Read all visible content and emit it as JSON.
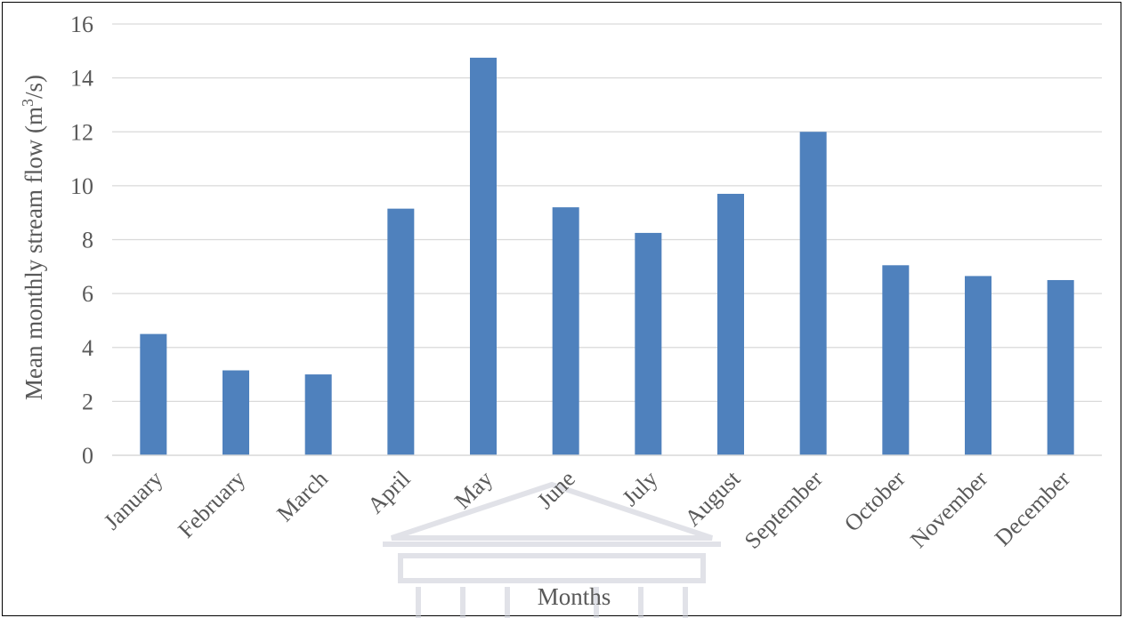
{
  "chart_data": {
    "type": "bar",
    "categories": [
      "January",
      "February",
      "March",
      "April",
      "May",
      "June",
      "July",
      "August",
      "September",
      "October",
      "November",
      "December"
    ],
    "values": [
      4.5,
      3.15,
      3.0,
      9.15,
      14.75,
      9.2,
      8.25,
      9.7,
      12.0,
      7.05,
      6.65,
      6.5
    ],
    "xlabel": "Months",
    "ylabel_prefix": "Mean monthly  stream flow (m",
    "ylabel_sup": "3",
    "ylabel_suffix": "/s)",
    "ylim": [
      0,
      16
    ],
    "yticks": [
      0,
      2,
      4,
      6,
      8,
      10,
      12,
      14,
      16
    ],
    "grid": true,
    "legend": "none",
    "bar_color": "#4F81BD",
    "grid_color": "#D9D9D9",
    "watermark": "university building logo"
  }
}
